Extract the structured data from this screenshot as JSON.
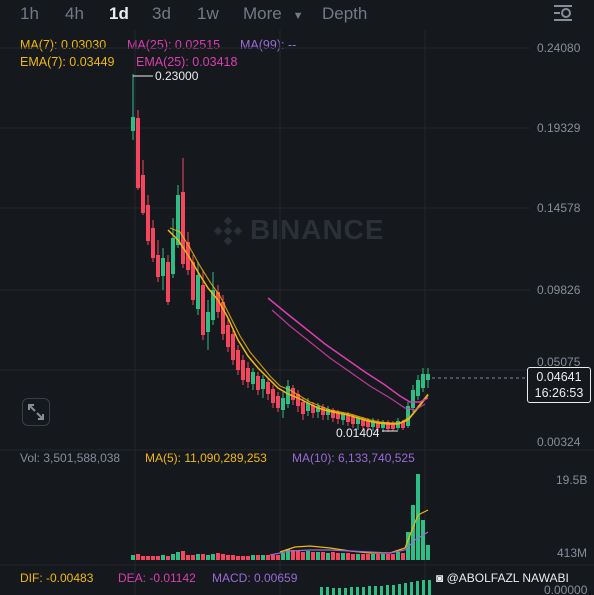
{
  "tabs": [
    "1h",
    "4h",
    "1d",
    "3d",
    "1w",
    "More",
    "Depth"
  ],
  "active_tab": "1d",
  "ma_legend": {
    "ma7": "MA(7): 0.03030",
    "ma25": "MA(25): 0.02515",
    "ma99": "MA(99): --",
    "ema7": "EMA(7): 0.03449",
    "ema25": "EMA(25): 0.03418"
  },
  "price_axis": [
    "0.24080",
    "0.19329",
    "0.14578",
    "0.09826",
    "0.05075",
    "0.00324"
  ],
  "high_label": "0.23000",
  "low_label": "0.01404",
  "current_price": "0.04641",
  "countdown": "16:26:53",
  "watermark": "BINANCE",
  "volume": {
    "vol": "Vol: 3,501,588,038",
    "ma5": "MA(5): 11,090,289,253",
    "ma10": "MA(10): 6,133,740,525",
    "axis": [
      "19.5B",
      "413M"
    ]
  },
  "macd": {
    "dif": "DIF: -0.00483",
    "dea": "DEA: -0.01142",
    "macd": "MACD: 0.00659",
    "axis": "0.00000"
  },
  "credit": "@ABOLFAZL NAWABI",
  "colors": {
    "up": "#2ebd85",
    "down": "#f6465d",
    "ma7": "#f0b90b",
    "ma25": "#d93fb0",
    "ma99": "#9b6bd6"
  }
}
